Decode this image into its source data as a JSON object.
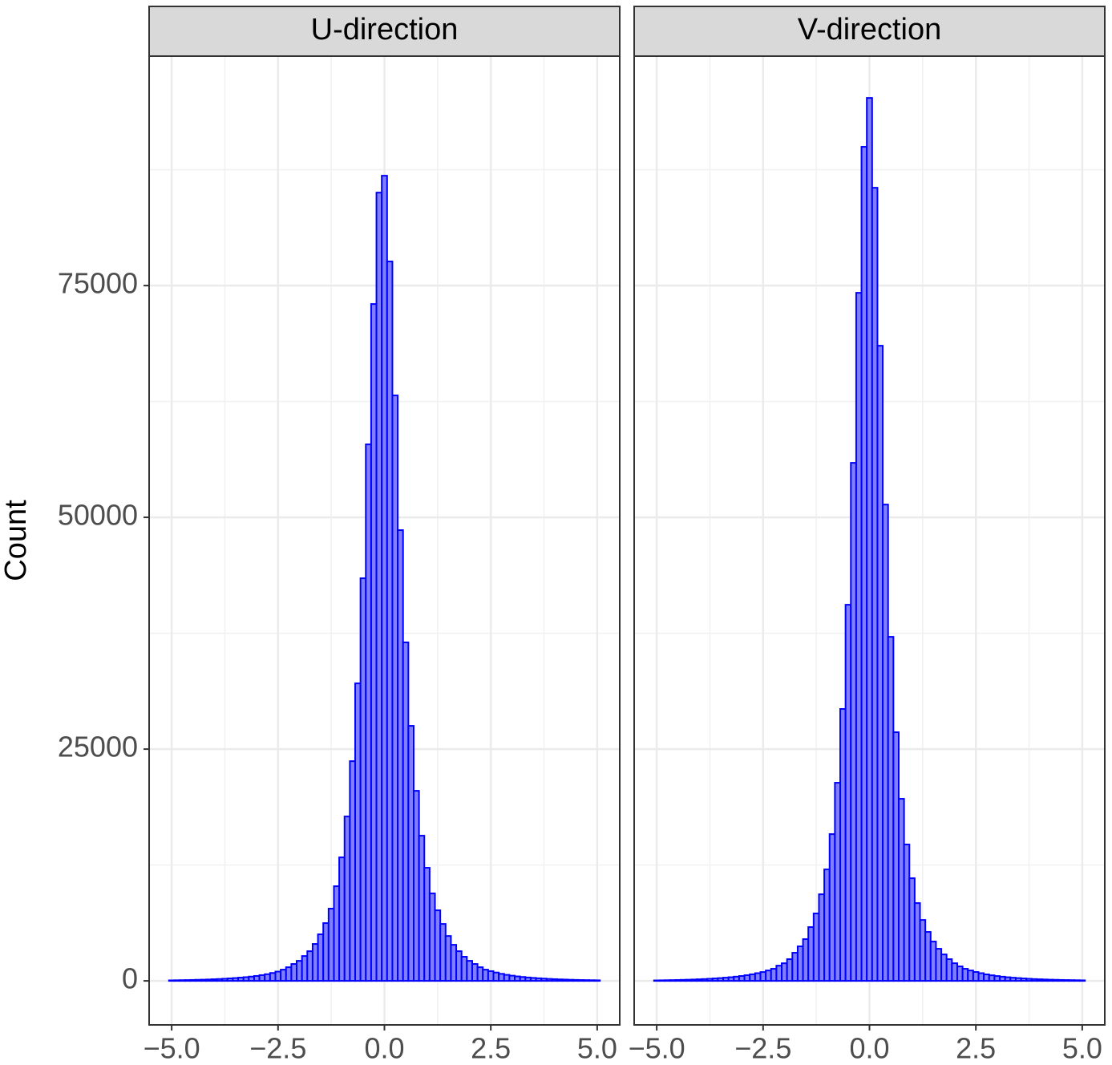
{
  "chart_data": [
    {
      "type": "histogram",
      "title": "U-direction",
      "ylabel": "Count",
      "color": "#0000ff",
      "fill": "#7f7fff",
      "grid": true,
      "xlim": [
        -5.53,
        5.53
      ],
      "ylim": [
        -4750,
        99750
      ],
      "xticks": [
        {
          "value": -5,
          "label": "−5.0"
        },
        {
          "value": -2.5,
          "label": "−2.5"
        },
        {
          "value": 0,
          "label": "0.0"
        },
        {
          "value": 2.5,
          "label": "2.5"
        },
        {
          "value": 5,
          "label": "5.0"
        }
      ],
      "minor_xticks": [
        -3.75,
        -1.25,
        1.25,
        3.75
      ],
      "yticks": [
        0,
        25000,
        50000,
        75000
      ],
      "minor_yticks": [
        12500,
        37500,
        62500,
        87500
      ],
      "bins": [
        -5.0625,
        -4.9375,
        -4.8125,
        -4.6875,
        -4.5625,
        -4.4375,
        -4.3125,
        -4.1875,
        -4.0625,
        -3.9375,
        -3.8125,
        -3.6875,
        -3.5625,
        -3.4375,
        -3.3125,
        -3.1875,
        -3.0625,
        -2.9375,
        -2.8125,
        -2.6875,
        -2.5625,
        -2.4375,
        -2.3125,
        -2.1875,
        -2.0625,
        -1.9375,
        -1.8125,
        -1.6875,
        -1.5625,
        -1.4375,
        -1.3125,
        -1.1875,
        -1.0625,
        -0.9375,
        -0.8125,
        -0.6875,
        -0.5625,
        -0.4375,
        -0.3125,
        -0.1875,
        -0.0625,
        0.0625,
        0.1875,
        0.3125,
        0.4375,
        0.5625,
        0.6875,
        0.8125,
        0.9375,
        1.0625,
        1.1875,
        1.3125,
        1.4375,
        1.5625,
        1.6875,
        1.8125,
        1.9375,
        2.0625,
        2.1875,
        2.3125,
        2.4375,
        2.5625,
        2.6875,
        2.8125,
        2.9375,
        3.0625,
        3.1875,
        3.3125,
        3.4375,
        3.5625,
        3.6875,
        3.8125,
        3.9375,
        4.0625,
        4.1875,
        4.3125,
        4.4375,
        4.5625,
        4.6875,
        4.8125,
        4.9375,
        5.0625
      ],
      "values": [
        55,
        65,
        75,
        85,
        100,
        115,
        130,
        150,
        175,
        200,
        230,
        265,
        305,
        350,
        400,
        460,
        530,
        620,
        720,
        850,
        1000,
        1210,
        1470,
        1820,
        2160,
        2680,
        3200,
        3980,
        5020,
        6230,
        7790,
        10210,
        13320,
        17730,
        23700,
        32090,
        43430,
        57870,
        73010,
        85030,
        86850,
        77600,
        63150,
        48620,
        36510,
        27510,
        20500,
        15660,
        12200,
        9430,
        7610,
        6140,
        4840,
        3890,
        3200,
        2600,
        2160,
        1820,
        1470,
        1210,
        1050,
        900,
        760,
        650,
        560,
        480,
        420,
        365,
        320,
        280,
        245,
        210,
        185,
        160,
        140,
        120,
        105,
        90,
        80,
        70,
        60
      ]
    },
    {
      "type": "histogram",
      "title": "V-direction",
      "color": "#0000ff",
      "fill": "#7f7fff",
      "grid": true,
      "xlim": [
        -5.53,
        5.53
      ],
      "ylim": [
        -4750,
        99750
      ],
      "xticks": [
        {
          "value": -5,
          "label": "−5.0"
        },
        {
          "value": -2.5,
          "label": "−2.5"
        },
        {
          "value": 0,
          "label": "0.0"
        },
        {
          "value": 2.5,
          "label": "2.5"
        },
        {
          "value": 5,
          "label": "5.0"
        }
      ],
      "minor_xticks": [
        -3.75,
        -1.25,
        1.25,
        3.75
      ],
      "yticks": [
        0,
        25000,
        50000,
        75000
      ],
      "minor_yticks": [
        12500,
        37500,
        62500,
        87500
      ],
      "bins": [
        -5.0625,
        -4.9375,
        -4.8125,
        -4.6875,
        -4.5625,
        -4.4375,
        -4.3125,
        -4.1875,
        -4.0625,
        -3.9375,
        -3.8125,
        -3.6875,
        -3.5625,
        -3.4375,
        -3.3125,
        -3.1875,
        -3.0625,
        -2.9375,
        -2.8125,
        -2.6875,
        -2.5625,
        -2.4375,
        -2.3125,
        -2.1875,
        -2.0625,
        -1.9375,
        -1.8125,
        -1.6875,
        -1.5625,
        -1.4375,
        -1.3125,
        -1.1875,
        -1.0625,
        -0.9375,
        -0.8125,
        -0.6875,
        -0.5625,
        -0.4375,
        -0.3125,
        -0.1875,
        -0.0625,
        0.0625,
        0.1875,
        0.3125,
        0.4375,
        0.5625,
        0.6875,
        0.8125,
        0.9375,
        1.0625,
        1.1875,
        1.3125,
        1.4375,
        1.5625,
        1.6875,
        1.8125,
        1.9375,
        2.0625,
        2.1875,
        2.3125,
        2.4375,
        2.5625,
        2.6875,
        2.8125,
        2.9375,
        3.0625,
        3.1875,
        3.3125,
        3.4375,
        3.5625,
        3.6875,
        3.8125,
        3.9375,
        4.0625,
        4.1875,
        4.3125,
        4.4375,
        4.5625,
        4.6875,
        4.8125,
        4.9375,
        5.0625
      ],
      "values": [
        50,
        60,
        70,
        80,
        95,
        110,
        125,
        145,
        170,
        195,
        225,
        260,
        300,
        345,
        395,
        455,
        525,
        610,
        710,
        830,
        950,
        1120,
        1300,
        1640,
        1900,
        2340,
        3030,
        3720,
        4500,
        5800,
        7270,
        9340,
        12020,
        15830,
        21370,
        29330,
        40570,
        55880,
        74220,
        89970,
        95240,
        85550,
        68510,
        51380,
        37110,
        26820,
        19640,
        14710,
        11070,
        8390,
        6570,
        5280,
        4240,
        3460,
        2850,
        2340,
        1900,
        1560,
        1300,
        1120,
        960,
        830,
        700,
        600,
        520,
        450,
        390,
        340,
        300,
        260,
        225,
        195,
        170,
        150,
        130,
        115,
        100,
        88,
        78,
        68,
        58
      ]
    }
  ]
}
